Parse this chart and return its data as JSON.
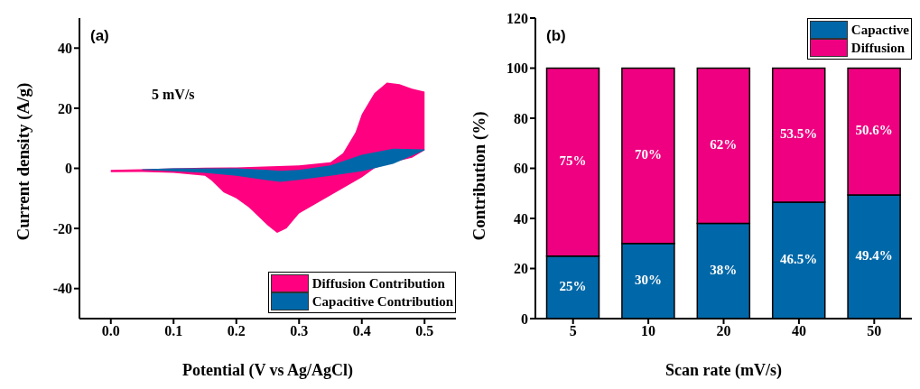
{
  "chart_data": [
    {
      "type": "area",
      "title": "(a)",
      "xlabel": "Potential (V vs Ag/AgCl)",
      "ylabel": "Current density (A/g)",
      "annotations": [
        "5 mV/s"
      ],
      "xlim": [
        -0.05,
        0.55
      ],
      "xticks": [
        {
          "value": 0,
          "label": "0.0"
        },
        0.1,
        0.2,
        0.3,
        0.4,
        0.5
      ],
      "ylim": [
        -50,
        50
      ],
      "yticks": [
        -40,
        -20,
        0,
        20,
        40
      ],
      "grid": false,
      "legend": "bottom right",
      "series": [
        {
          "name": "Diffusion Contribution",
          "color": "#ff0080",
          "x": [
            0,
            0.05,
            0.1,
            0.15,
            0.2,
            0.3,
            0.35,
            0.37,
            0.39,
            0.4,
            0.42,
            0.44,
            0.46,
            0.48,
            0.5,
            0.5,
            0.48,
            0.45,
            0.42,
            0.4,
            0.35,
            0.3,
            0.28,
            0.265,
            0.25,
            0.22,
            0.2,
            0.18,
            0.16,
            0.15,
            0.1,
            0.05,
            0
          ],
          "values": [
            -0.5,
            -0.3,
            0,
            0.2,
            0.3,
            1,
            2,
            5,
            12,
            18,
            25,
            28.5,
            28,
            26.5,
            25.5,
            6,
            3.5,
            2,
            0,
            -3,
            -9,
            -15,
            -20,
            -21.5,
            -19,
            -13,
            -10,
            -8,
            -4,
            -2.5,
            -1.5,
            -1.2,
            -1.3
          ]
        },
        {
          "name": "Capacitive Contribution",
          "color": "#0068a8",
          "x": [
            0.05,
            0.1,
            0.15,
            0.2,
            0.25,
            0.27,
            0.3,
            0.35,
            0.4,
            0.45,
            0.5,
            0.5,
            0.45,
            0.4,
            0.35,
            0.3,
            0.27,
            0.25,
            0.2,
            0.15,
            0.1,
            0.05
          ],
          "values": [
            -0.3,
            0,
            0,
            0,
            -0.5,
            -0.8,
            -0.5,
            1,
            4.5,
            6.5,
            6.3,
            6,
            1.5,
            -1,
            -2.5,
            -3.8,
            -4.5,
            -4,
            -2.5,
            -1.5,
            -1,
            -0.5
          ]
        }
      ]
    },
    {
      "type": "bar",
      "title": "(b)",
      "xlabel": "Scan rate (mV/s)",
      "ylabel": "Contribution (%)",
      "stacked": true,
      "categories": [
        "5",
        "10",
        "20",
        "40",
        "50"
      ],
      "ylim": [
        0,
        120
      ],
      "yticks": [
        0,
        20,
        40,
        60,
        80,
        100,
        120
      ],
      "grid": false,
      "legend": "top right",
      "series": [
        {
          "name": "Capactive",
          "color": "#0068a8",
          "values": [
            25,
            30,
            38,
            46.5,
            49.4
          ],
          "value_labels": [
            "25%",
            "30%",
            "38%",
            "46.5%",
            "49.4%"
          ]
        },
        {
          "name": "Diffusion",
          "color": "#ee0080",
          "values": [
            75,
            70,
            62,
            53.5,
            50.6
          ],
          "value_labels": [
            "75%",
            "70%",
            "62%",
            "53.5%",
            "50.6%"
          ]
        }
      ]
    }
  ]
}
